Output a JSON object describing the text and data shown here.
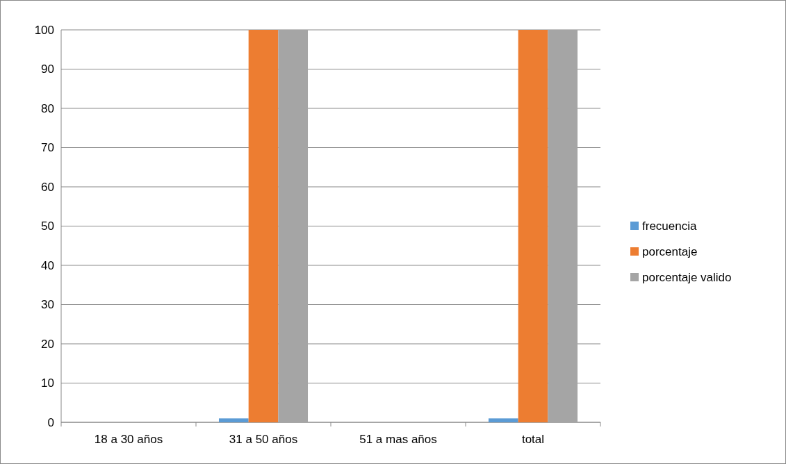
{
  "chart_data": {
    "type": "bar",
    "categories": [
      "18 a 30 años",
      "31 a 50 años",
      "51 a mas años",
      "total"
    ],
    "series": [
      {
        "name": "frecuencia",
        "color": "#5b9bd5",
        "values": [
          0,
          1,
          0,
          1
        ]
      },
      {
        "name": "porcentaje",
        "color": "#ed7d31",
        "values": [
          0,
          100,
          0,
          100
        ]
      },
      {
        "name": "porcentaje valido",
        "color": "#a5a5a5",
        "values": [
          0,
          100,
          0,
          100
        ]
      }
    ],
    "ylim": [
      0,
      100
    ],
    "yticks": [
      0,
      10,
      20,
      30,
      40,
      50,
      60,
      70,
      80,
      90,
      100
    ],
    "grid": "y",
    "legend": "right"
  }
}
